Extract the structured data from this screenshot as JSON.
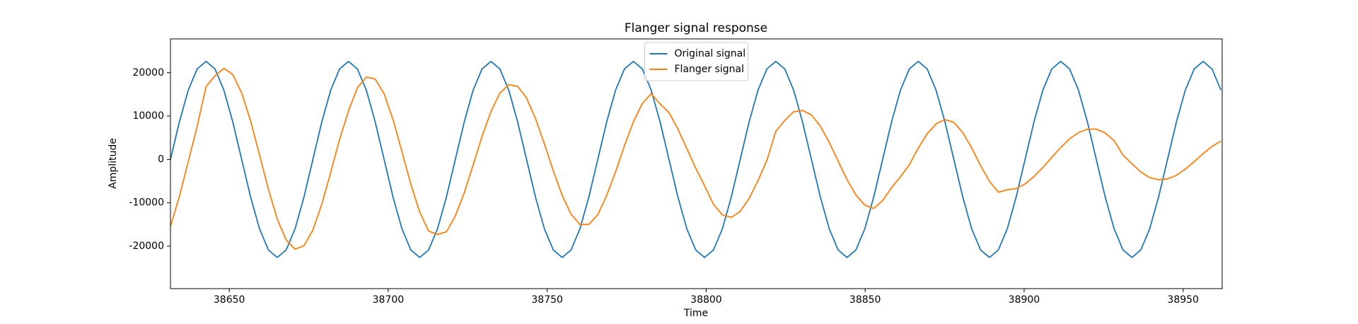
{
  "chart_data": {
    "type": "line",
    "title": "Flanger signal response",
    "xlabel": "Time",
    "ylabel": "Amplitude",
    "xlim": [
      38631.5,
      38962.3
    ],
    "ylim": [
      -29800,
      27800
    ],
    "xticks": [
      38650,
      38700,
      38750,
      38800,
      38850,
      38900,
      38950
    ],
    "yticks": [
      -20000,
      -10000,
      0,
      10000,
      20000
    ],
    "grid": false,
    "legend": "upper center",
    "x": [
      38631.5,
      38634.3,
      38637.1,
      38639.9,
      38642.7,
      38645.5,
      38648.3,
      38651.1,
      38653.9,
      38656.7,
      38659.5,
      38662.3,
      38665.1,
      38667.9,
      38670.7,
      38673.5,
      38676.3,
      38679.1,
      38681.9,
      38684.7,
      38687.5,
      38690.3,
      38693.1,
      38695.9,
      38698.7,
      38701.5,
      38704.3,
      38707.1,
      38709.9,
      38712.7,
      38715.5,
      38718.3,
      38721.1,
      38723.9,
      38726.7,
      38729.5,
      38732.3,
      38735.1,
      38737.9,
      38740.7,
      38743.5,
      38746.3,
      38749.1,
      38751.9,
      38754.7,
      38757.5,
      38760.3,
      38763.1,
      38765.9,
      38768.7,
      38771.5,
      38774.3,
      38777.1,
      38779.9,
      38782.7,
      38785.5,
      38788.3,
      38791.1,
      38793.9,
      38796.7,
      38799.5,
      38802.3,
      38805.1,
      38807.9,
      38810.7,
      38813.5,
      38816.3,
      38819.1,
      38821.9,
      38824.7,
      38827.5,
      38830.3,
      38833.1,
      38835.9,
      38838.7,
      38841.5,
      38844.3,
      38847.1,
      38849.9,
      38852.7,
      38855.5,
      38858.3,
      38861.1,
      38863.9,
      38866.7,
      38869.5,
      38872.3,
      38875.1,
      38877.9,
      38880.7,
      38883.5,
      38886.3,
      38889.1,
      38891.9,
      38894.7,
      38897.5,
      38900.3,
      38903.1,
      38905.9,
      38908.7,
      38911.5,
      38914.3,
      38917.1,
      38919.9,
      38922.7,
      38925.5,
      38928.3,
      38931.1,
      38933.9,
      38936.7,
      38939.5,
      38942.3,
      38945.1,
      38947.9,
      38950.7,
      38953.5,
      38956.3,
      38959.1,
      38961.9
    ],
    "series": [
      {
        "name": "Original signal",
        "color": "#1f77b4",
        "values": [
          0,
          8649,
          15981,
          20880,
          22600,
          20880,
          15981,
          8649,
          0,
          -8649,
          -15981,
          -20880,
          -22600,
          -20880,
          -15981,
          -8649,
          0,
          8649,
          15981,
          20880,
          22600,
          20880,
          15981,
          8649,
          0,
          -8649,
          -15981,
          -20880,
          -22600,
          -20880,
          -15981,
          -8649,
          0,
          8649,
          15981,
          20880,
          22600,
          20880,
          15981,
          8649,
          0,
          -8649,
          -15981,
          -20880,
          -22600,
          -20880,
          -15981,
          -8649,
          0,
          8649,
          15981,
          20880,
          22600,
          20880,
          15981,
          8649,
          0,
          -8649,
          -15981,
          -20880,
          -22600,
          -20880,
          -15981,
          -8649,
          0,
          8649,
          15981,
          20880,
          22600,
          20880,
          15981,
          8649,
          0,
          -8649,
          -15981,
          -20880,
          -22600,
          -20880,
          -15981,
          -8649,
          0,
          8649,
          15981,
          20880,
          22600,
          20880,
          15981,
          8649,
          0,
          -8649,
          -15981,
          -20880,
          -22600,
          -20880,
          -15981,
          -8649,
          0,
          8649,
          15981,
          20880,
          22600,
          20880,
          15981,
          8649,
          0,
          -8649,
          -15981,
          -20880,
          -22600,
          -20880,
          -15981,
          -8649,
          0,
          8649,
          15981,
          20880,
          22600,
          20880,
          15981
        ]
      },
      {
        "name": "Flanger signal",
        "color": "#ff7f0e",
        "values": [
          -15400,
          -8580,
          -500,
          7655,
          16800,
          19300,
          21000,
          19580,
          15320,
          8880,
          1060,
          -6840,
          -13780,
          -18580,
          -20720,
          -19880,
          -16280,
          -10320,
          -3000,
          4640,
          11200,
          16520,
          19000,
          18530,
          15110,
          9190,
          1830,
          -5720,
          -12120,
          -16550,
          -17300,
          -16690,
          -13040,
          -7700,
          -1260,
          5330,
          11030,
          15280,
          17260,
          16840,
          14160,
          9450,
          3600,
          -2610,
          -8270,
          -12650,
          -15000,
          -15000,
          -12750,
          -8300,
          -2870,
          3180,
          8650,
          12880,
          15150,
          12800,
          10800,
          7000,
          2500,
          -2000,
          -6080,
          -10380,
          -12820,
          -13350,
          -11990,
          -9000,
          -4880,
          -210,
          6500,
          9000,
          11000,
          11300,
          10260,
          7680,
          3910,
          -380,
          -4660,
          -8200,
          -10550,
          -11300,
          -9500,
          -6500,
          -4000,
          -1230,
          2620,
          5920,
          8200,
          9180,
          8570,
          6190,
          2640,
          -1420,
          -5060,
          -7560,
          -7000,
          -6690,
          -5650,
          -3930,
          -1850,
          470,
          2740,
          4760,
          6210,
          6990,
          7000,
          6100,
          4330,
          1000,
          -1000,
          -2900,
          -4200,
          -4680,
          -4500,
          -3660,
          -2230,
          -500,
          1340,
          3000,
          4230
        ]
      }
    ]
  }
}
